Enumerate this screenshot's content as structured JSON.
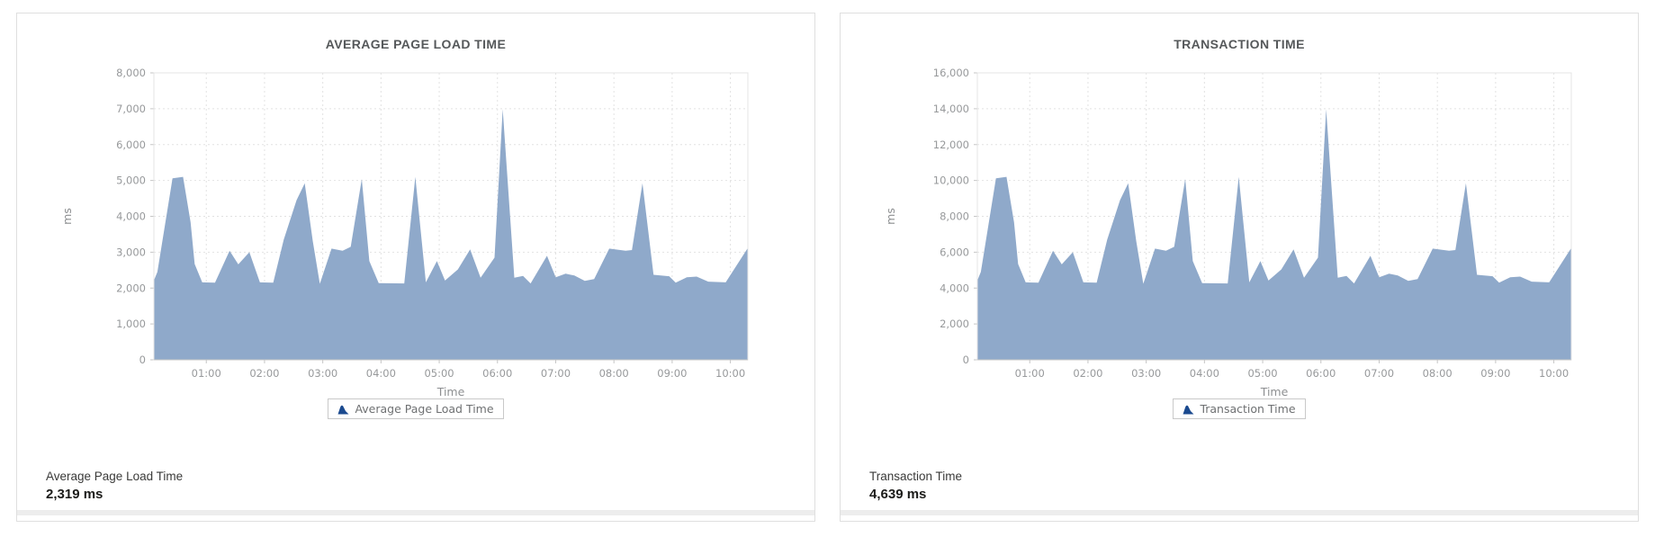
{
  "colors": {
    "area_fill": "#8fa9ca",
    "legend_marker": "#1b4a8f",
    "grid_line": "#e2e2e2",
    "plot_border": "#e4e4e4",
    "axis_line": "#c6c6c6",
    "tick_text": "#97999b",
    "title_text": "#55585a",
    "card_border": "#dfdfdf"
  },
  "cards": [
    {
      "summary_label": "Average Page Load Time",
      "summary_value": "2,319 ms"
    },
    {
      "summary_label": "Transaction Time",
      "summary_value": "4,639 ms"
    }
  ],
  "chart_data": [
    {
      "type": "area",
      "title": "AVERAGE PAGE LOAD TIME",
      "xlabel": "Time",
      "ylabel": "ms",
      "ylim": [
        0,
        8000
      ],
      "ytick_step": 1000,
      "xlim_hours": [
        0.1,
        10.3
      ],
      "grid": "dotted",
      "legend_position": "bottom",
      "xticks": [
        {
          "hour": 1,
          "label": "01:00"
        },
        {
          "hour": 2,
          "label": "02:00"
        },
        {
          "hour": 3,
          "label": "03:00"
        },
        {
          "hour": 4,
          "label": "04:00"
        },
        {
          "hour": 5,
          "label": "05:00"
        },
        {
          "hour": 6,
          "label": "06:00"
        },
        {
          "hour": 7,
          "label": "07:00"
        },
        {
          "hour": 8,
          "label": "08:00"
        },
        {
          "hour": 9,
          "label": "09:00"
        },
        {
          "hour": 10,
          "label": "10:00"
        }
      ],
      "series": [
        {
          "name": "Average Page Load Time",
          "points": [
            [
              0.1,
              2210
            ],
            [
              0.16,
              2450
            ],
            [
              0.42,
              5060
            ],
            [
              0.6,
              5100
            ],
            [
              0.73,
              3830
            ],
            [
              0.8,
              2670
            ],
            [
              0.93,
              2160
            ],
            [
              1.15,
              2150
            ],
            [
              1.4,
              3040
            ],
            [
              1.55,
              2660
            ],
            [
              1.74,
              3000
            ],
            [
              1.92,
              2160
            ],
            [
              2.15,
              2150
            ],
            [
              2.33,
              3350
            ],
            [
              2.55,
              4450
            ],
            [
              2.69,
              4920
            ],
            [
              2.83,
              3300
            ],
            [
              2.95,
              2120
            ],
            [
              3.15,
              3100
            ],
            [
              3.34,
              3040
            ],
            [
              3.48,
              3150
            ],
            [
              3.67,
              5040
            ],
            [
              3.8,
              2750
            ],
            [
              3.96,
              2140
            ],
            [
              4.4,
              2130
            ],
            [
              4.59,
              5100
            ],
            [
              4.77,
              2160
            ],
            [
              4.96,
              2750
            ],
            [
              5.1,
              2210
            ],
            [
              5.32,
              2520
            ],
            [
              5.53,
              3080
            ],
            [
              5.71,
              2290
            ],
            [
              5.95,
              2850
            ],
            [
              6.09,
              6985
            ],
            [
              6.29,
              2290
            ],
            [
              6.44,
              2340
            ],
            [
              6.57,
              2130
            ],
            [
              6.85,
              2900
            ],
            [
              7.0,
              2300
            ],
            [
              7.17,
              2400
            ],
            [
              7.32,
              2350
            ],
            [
              7.5,
              2200
            ],
            [
              7.66,
              2250
            ],
            [
              7.92,
              3100
            ],
            [
              8.2,
              3040
            ],
            [
              8.31,
              3060
            ],
            [
              8.49,
              4920
            ],
            [
              8.68,
              2370
            ],
            [
              8.95,
              2330
            ],
            [
              9.06,
              2150
            ],
            [
              9.25,
              2300
            ],
            [
              9.42,
              2320
            ],
            [
              9.62,
              2180
            ],
            [
              9.92,
              2160
            ],
            [
              10.3,
              3120
            ]
          ]
        }
      ]
    },
    {
      "type": "area",
      "title": "TRANSACTION TIME",
      "xlabel": "Time",
      "ylabel": "ms",
      "ylim": [
        0,
        16000
      ],
      "ytick_step": 2000,
      "xlim_hours": [
        0.1,
        10.3
      ],
      "grid": "dotted",
      "legend_position": "bottom",
      "xticks": [
        {
          "hour": 1,
          "label": "01:00"
        },
        {
          "hour": 2,
          "label": "02:00"
        },
        {
          "hour": 3,
          "label": "03:00"
        },
        {
          "hour": 4,
          "label": "04:00"
        },
        {
          "hour": 5,
          "label": "05:00"
        },
        {
          "hour": 6,
          "label": "06:00"
        },
        {
          "hour": 7,
          "label": "07:00"
        },
        {
          "hour": 8,
          "label": "08:00"
        },
        {
          "hour": 9,
          "label": "09:00"
        },
        {
          "hour": 10,
          "label": "10:00"
        }
      ],
      "series": [
        {
          "name": "Transaction Time",
          "points": [
            [
              0.1,
              4420
            ],
            [
              0.16,
              4900
            ],
            [
              0.42,
              10120
            ],
            [
              0.6,
              10200
            ],
            [
              0.73,
              7660
            ],
            [
              0.8,
              5340
            ],
            [
              0.93,
              4320
            ],
            [
              1.15,
              4300
            ],
            [
              1.4,
              6080
            ],
            [
              1.55,
              5320
            ],
            [
              1.74,
              6000
            ],
            [
              1.92,
              4320
            ],
            [
              2.15,
              4300
            ],
            [
              2.33,
              6700
            ],
            [
              2.55,
              8900
            ],
            [
              2.69,
              9840
            ],
            [
              2.83,
              6600
            ],
            [
              2.95,
              4240
            ],
            [
              3.15,
              6200
            ],
            [
              3.34,
              6080
            ],
            [
              3.48,
              6300
            ],
            [
              3.67,
              10080
            ],
            [
              3.8,
              5500
            ],
            [
              3.96,
              4280
            ],
            [
              4.4,
              4260
            ],
            [
              4.59,
              10200
            ],
            [
              4.77,
              4320
            ],
            [
              4.96,
              5500
            ],
            [
              5.1,
              4420
            ],
            [
              5.32,
              5040
            ],
            [
              5.53,
              6160
            ],
            [
              5.71,
              4580
            ],
            [
              5.95,
              5700
            ],
            [
              6.09,
              13970
            ],
            [
              6.29,
              4580
            ],
            [
              6.44,
              4680
            ],
            [
              6.57,
              4260
            ],
            [
              6.85,
              5800
            ],
            [
              7.0,
              4600
            ],
            [
              7.17,
              4800
            ],
            [
              7.32,
              4700
            ],
            [
              7.5,
              4400
            ],
            [
              7.66,
              4500
            ],
            [
              7.92,
              6200
            ],
            [
              8.2,
              6080
            ],
            [
              8.31,
              6120
            ],
            [
              8.49,
              9840
            ],
            [
              8.68,
              4740
            ],
            [
              8.95,
              4660
            ],
            [
              9.06,
              4300
            ],
            [
              9.25,
              4600
            ],
            [
              9.42,
              4640
            ],
            [
              9.62,
              4360
            ],
            [
              9.92,
              4320
            ],
            [
              10.3,
              6240
            ]
          ]
        }
      ]
    }
  ]
}
